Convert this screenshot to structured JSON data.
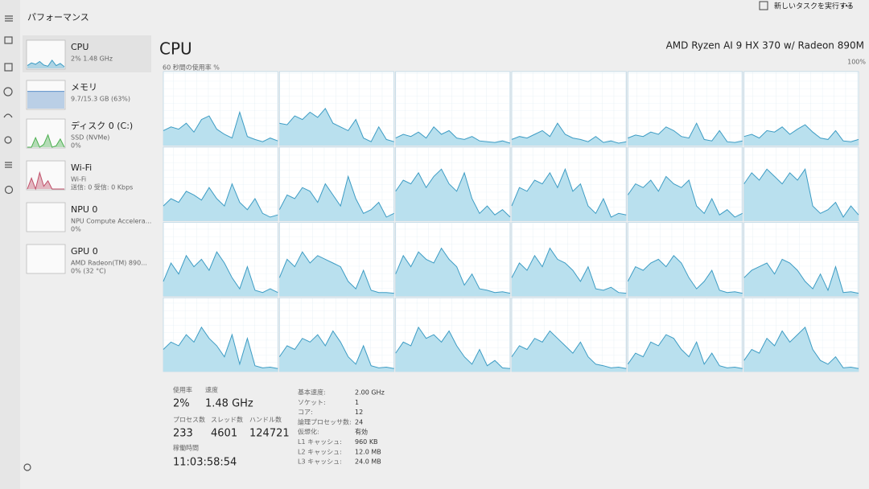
{
  "header": {
    "title": "パフォーマンス",
    "run_task": "新しいタスクを実行する"
  },
  "sidebar": [
    {
      "name": "CPU",
      "lines": [
        "2% 1.48 GHz"
      ],
      "thumb": {
        "color": "#3d9cc4",
        "values": [
          10,
          20,
          15,
          25,
          12,
          8,
          30,
          10,
          18,
          6
        ]
      }
    },
    {
      "name": "メモリ",
      "lines": [
        "9.7/15.3 GB (63%)"
      ],
      "thumb": {
        "color": "#5b8fc9",
        "values": [
          63,
          63,
          63,
          63,
          63,
          63,
          63,
          63,
          63,
          63
        ]
      }
    },
    {
      "name": "ディスク 0 (C:)",
      "lines": [
        "SSD (NVMe)",
        "0%"
      ],
      "thumb": {
        "color": "#4caf50",
        "values": [
          0,
          0,
          35,
          0,
          10,
          45,
          0,
          5,
          30,
          0
        ]
      }
    },
    {
      "name": "Wi-Fi",
      "lines": [
        "Wi-Fi",
        "送信: 0 受信: 0 Kbps"
      ],
      "thumb": {
        "color": "#c0506a",
        "values": [
          0,
          40,
          0,
          60,
          10,
          30,
          0,
          0,
          0,
          0
        ]
      }
    },
    {
      "name": "NPU 0",
      "lines": [
        "NPU Compute Accelera...",
        "0%"
      ]
    },
    {
      "name": "GPU 0",
      "lines": [
        "AMD Radeon(TM) 890...",
        "0% (32 °C)"
      ]
    }
  ],
  "thumb_ylim": [
    0,
    100
  ],
  "main": {
    "title": "CPU",
    "model": "AMD Ryzen AI 9 HX 370 w/ Radeon 890M",
    "graph_label": "60 秒間の使用率 %",
    "graph_max": "100%"
  },
  "cpu_graphs": {
    "ylim": [
      0,
      100
    ],
    "color": "#3d9cc4",
    "fill": "#b9e0ee",
    "cores": [
      [
        20,
        25,
        22,
        30,
        18,
        35,
        40,
        22,
        15,
        10,
        45,
        12,
        8,
        5,
        10,
        6
      ],
      [
        30,
        28,
        40,
        35,
        45,
        38,
        50,
        30,
        25,
        20,
        35,
        10,
        5,
        25,
        8,
        5
      ],
      [
        10,
        15,
        12,
        18,
        10,
        25,
        15,
        20,
        10,
        8,
        12,
        6,
        5,
        4,
        6,
        3
      ],
      [
        8,
        12,
        10,
        15,
        20,
        12,
        30,
        15,
        10,
        8,
        5,
        12,
        4,
        6,
        3,
        5
      ],
      [
        10,
        14,
        12,
        18,
        15,
        25,
        20,
        12,
        10,
        30,
        8,
        6,
        20,
        5,
        4,
        6
      ],
      [
        12,
        15,
        10,
        20,
        18,
        25,
        15,
        22,
        28,
        18,
        10,
        8,
        20,
        6,
        5,
        8
      ],
      [
        20,
        30,
        25,
        40,
        35,
        28,
        45,
        30,
        20,
        50,
        25,
        15,
        30,
        10,
        5,
        8
      ],
      [
        15,
        35,
        30,
        45,
        40,
        25,
        50,
        35,
        20,
        60,
        30,
        10,
        15,
        25,
        5,
        10
      ],
      [
        40,
        55,
        50,
        65,
        45,
        60,
        70,
        50,
        40,
        65,
        30,
        10,
        20,
        8,
        15,
        5
      ],
      [
        20,
        45,
        40,
        55,
        50,
        65,
        45,
        70,
        40,
        50,
        20,
        10,
        30,
        5,
        10,
        8
      ],
      [
        35,
        50,
        45,
        55,
        40,
        60,
        50,
        45,
        55,
        20,
        10,
        30,
        8,
        15,
        5,
        10
      ],
      [
        50,
        65,
        55,
        70,
        60,
        50,
        65,
        55,
        70,
        20,
        10,
        15,
        25,
        5,
        20,
        8
      ],
      [
        20,
        45,
        30,
        55,
        40,
        50,
        35,
        60,
        45,
        25,
        10,
        40,
        8,
        5,
        10,
        5
      ],
      [
        25,
        50,
        40,
        60,
        45,
        55,
        50,
        45,
        40,
        20,
        10,
        35,
        8,
        5,
        5,
        4
      ],
      [
        30,
        55,
        40,
        60,
        50,
        45,
        65,
        50,
        40,
        15,
        30,
        10,
        8,
        5,
        6,
        4
      ],
      [
        25,
        45,
        35,
        55,
        40,
        65,
        50,
        45,
        35,
        20,
        40,
        10,
        8,
        12,
        5,
        4
      ],
      [
        20,
        40,
        35,
        45,
        50,
        40,
        55,
        45,
        25,
        10,
        20,
        35,
        8,
        5,
        6,
        4
      ],
      [
        25,
        35,
        40,
        45,
        30,
        50,
        45,
        35,
        20,
        10,
        30,
        8,
        40,
        5,
        6,
        4
      ],
      [
        30,
        40,
        35,
        50,
        40,
        60,
        45,
        35,
        20,
        50,
        10,
        45,
        8,
        5,
        6,
        4
      ],
      [
        20,
        35,
        30,
        45,
        40,
        50,
        35,
        55,
        40,
        20,
        10,
        35,
        8,
        5,
        6,
        4
      ],
      [
        25,
        40,
        35,
        60,
        45,
        50,
        40,
        55,
        35,
        20,
        10,
        30,
        8,
        15,
        5,
        4
      ],
      [
        20,
        35,
        30,
        45,
        40,
        55,
        45,
        35,
        25,
        40,
        20,
        10,
        8,
        5,
        6,
        4
      ],
      [
        10,
        25,
        20,
        40,
        35,
        50,
        45,
        30,
        20,
        40,
        10,
        25,
        8,
        5,
        6,
        4
      ],
      [
        15,
        30,
        25,
        45,
        35,
        55,
        40,
        50,
        60,
        30,
        15,
        10,
        20,
        5,
        6,
        4
      ]
    ]
  },
  "stats": [
    {
      "label": "使用率",
      "value": "2%"
    },
    {
      "label": "速度",
      "value": "1.48 GHz"
    },
    {
      "label": "プロセス数",
      "value": "233"
    },
    {
      "label": "スレッド数",
      "value": "4601"
    },
    {
      "label": "ハンドル数",
      "value": "124721"
    },
    {
      "label": "稼働時間",
      "value": "11:03:58:54"
    }
  ],
  "details": [
    {
      "label": "基本速度:",
      "value": "2.00 GHz"
    },
    {
      "label": "ソケット:",
      "value": "1"
    },
    {
      "label": "コア:",
      "value": "12"
    },
    {
      "label": "論理プロセッサ数:",
      "value": "24"
    },
    {
      "label": "仮想化:",
      "value": "有効"
    },
    {
      "label": "L1 キャッシュ:",
      "value": "960 KB"
    },
    {
      "label": "L2 キャッシュ:",
      "value": "12.0 MB"
    },
    {
      "label": "L3 キャッシュ:",
      "value": "24.0 MB"
    }
  ]
}
